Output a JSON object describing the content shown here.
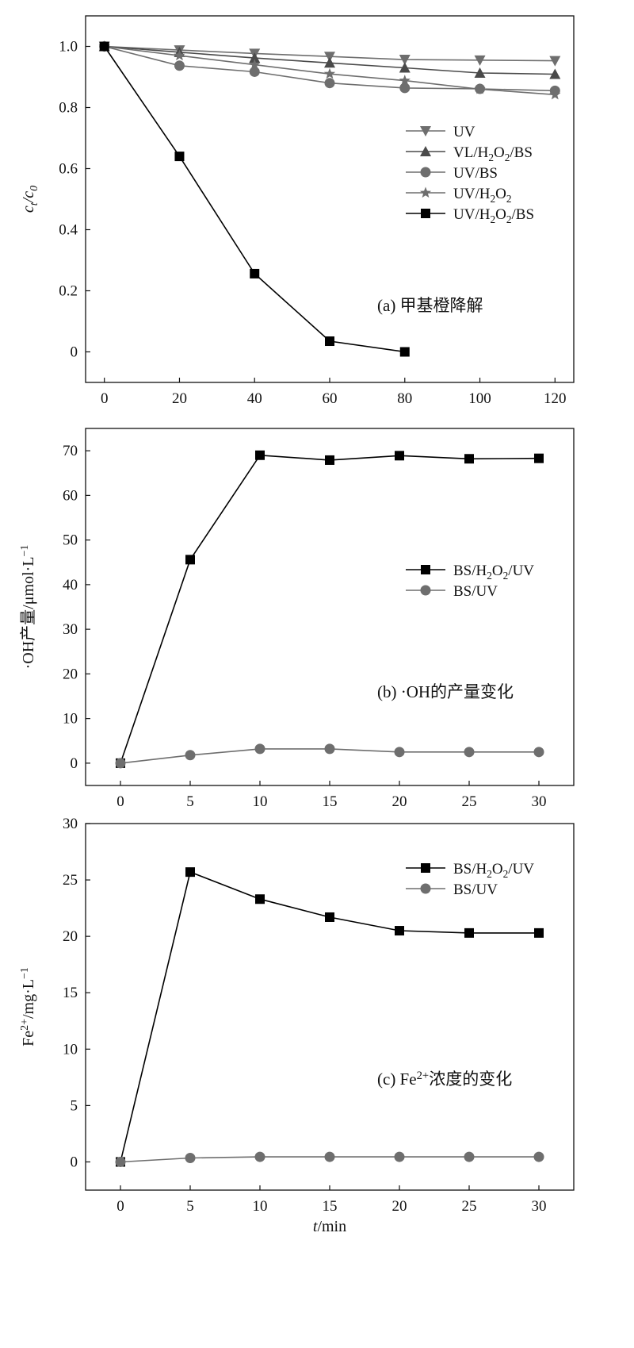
{
  "chart_data": [
    {
      "type": "line",
      "panel_label": "(a) 甲基橙降解",
      "xlabel": "",
      "ylabel": "c_t/c_0",
      "xlim": [
        -5,
        125
      ],
      "ylim": [
        -0.1,
        1.1
      ],
      "xticks": [
        0,
        20,
        40,
        60,
        80,
        100,
        120
      ],
      "yticks": [
        0,
        0.2,
        0.4,
        0.6,
        0.8,
        1.0
      ],
      "ytick_labels": [
        "0",
        "0.2",
        "0.4",
        "0.6",
        "0.8",
        "1.0"
      ],
      "legend_position": "upper-right",
      "series": [
        {
          "name": "UV",
          "color": "#6e6e6e",
          "marker": "triangle-down",
          "x": [
            0,
            20,
            40,
            60,
            80,
            100,
            120
          ],
          "y": [
            1.0,
            0.988,
            0.977,
            0.967,
            0.957,
            0.955,
            0.953
          ]
        },
        {
          "name": "VL/H2O2/BS",
          "color": "#4a4a4a",
          "marker": "triangle-up",
          "x": [
            0,
            20,
            40,
            60,
            80,
            100,
            120
          ],
          "y": [
            1.0,
            0.981,
            0.962,
            0.946,
            0.93,
            0.913,
            0.909
          ]
        },
        {
          "name": "UV/BS",
          "color": "#6e6e6e",
          "marker": "circle",
          "x": [
            0,
            20,
            40,
            60,
            80,
            100,
            120
          ],
          "y": [
            1.0,
            0.937,
            0.917,
            0.88,
            0.864,
            0.861,
            0.855
          ]
        },
        {
          "name": "UV/H2O2",
          "color": "#6e6e6e",
          "marker": "star",
          "x": [
            0,
            20,
            40,
            60,
            80,
            100,
            120
          ],
          "y": [
            1.0,
            0.97,
            0.94,
            0.91,
            0.888,
            0.86,
            0.842
          ]
        },
        {
          "name": "UV/H2O2/BS",
          "color": "#000000",
          "marker": "square",
          "x": [
            0,
            20,
            40,
            60,
            80
          ],
          "y": [
            1.0,
            0.64,
            0.256,
            0.035,
            0.0
          ]
        }
      ]
    },
    {
      "type": "line",
      "panel_label": "(b) ·OH的产量变化",
      "xlabel": "",
      "ylabel": "·OH产量/μmol·L−1",
      "xlim": [
        -2.5,
        32.5
      ],
      "ylim": [
        -5,
        75
      ],
      "xticks": [
        0,
        5,
        10,
        15,
        20,
        25,
        30
      ],
      "yticks": [
        0,
        10,
        20,
        30,
        40,
        50,
        60,
        70
      ],
      "ytick_labels": [
        "0",
        "10",
        "20",
        "30",
        "40",
        "50",
        "60",
        "70"
      ],
      "legend_position": "right",
      "series": [
        {
          "name": "BS/H2O2/UV",
          "color": "#000000",
          "marker": "square",
          "x": [
            0,
            5,
            10,
            15,
            20,
            25,
            30
          ],
          "y": [
            0,
            45.6,
            69.0,
            67.9,
            68.9,
            68.2,
            68.3
          ]
        },
        {
          "name": "BS/UV",
          "color": "#6e6e6e",
          "marker": "circle",
          "x": [
            0,
            5,
            10,
            15,
            20,
            25,
            30
          ],
          "y": [
            0,
            1.8,
            3.2,
            3.2,
            2.5,
            2.5,
            2.5
          ]
        }
      ]
    },
    {
      "type": "line",
      "panel_label": "(c) Fe2+浓度的变化",
      "xlabel": "t/min",
      "ylabel": "Fe2+/mg·L−1",
      "xlim": [
        -2.5,
        32.5
      ],
      "ylim": [
        -2.5,
        30
      ],
      "xticks": [
        0,
        5,
        10,
        15,
        20,
        25,
        30
      ],
      "yticks": [
        0,
        5,
        10,
        15,
        20,
        25,
        30
      ],
      "ytick_labels": [
        "0",
        "5",
        "10",
        "15",
        "20",
        "25",
        "30"
      ],
      "legend_position": "upper-right",
      "series": [
        {
          "name": "BS/H2O2/UV",
          "color": "#000000",
          "marker": "square",
          "x": [
            0,
            5,
            10,
            15,
            20,
            25,
            30
          ],
          "y": [
            0,
            25.7,
            23.3,
            21.7,
            20.5,
            20.3,
            20.3
          ]
        },
        {
          "name": "BS/UV",
          "color": "#6e6e6e",
          "marker": "circle",
          "x": [
            0,
            5,
            10,
            15,
            20,
            25,
            30
          ],
          "y": [
            0,
            0.35,
            0.45,
            0.45,
            0.45,
            0.45,
            0.45
          ]
        }
      ]
    }
  ]
}
